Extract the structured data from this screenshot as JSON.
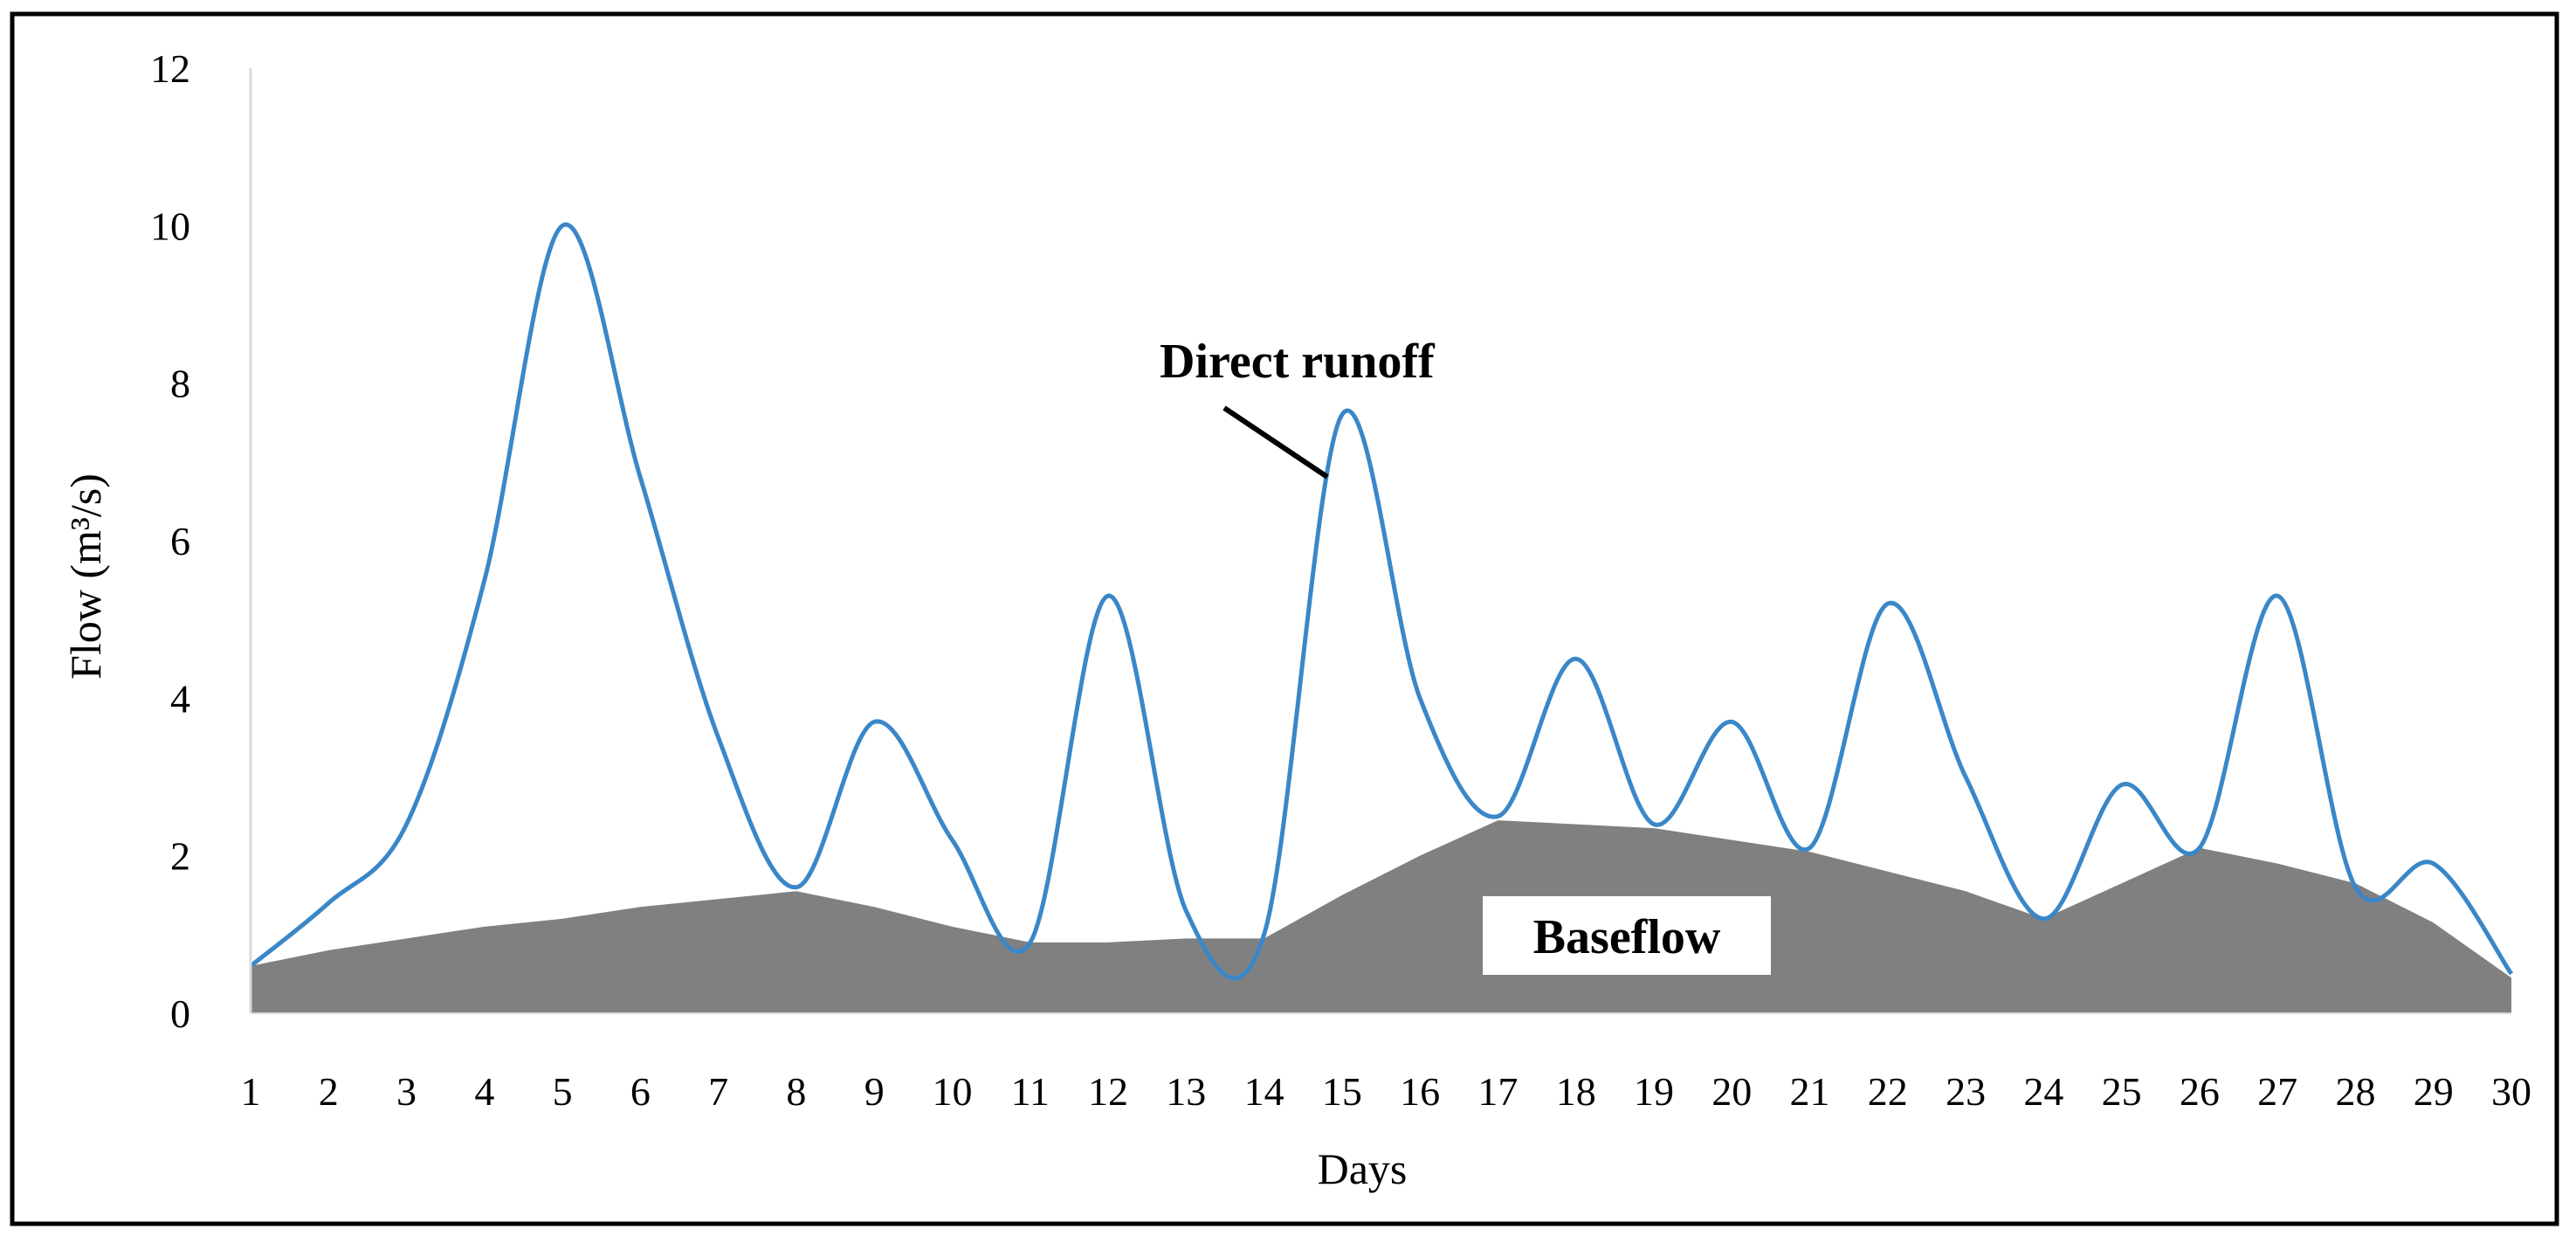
{
  "chart_data": {
    "type": "area",
    "xlabel": "Days",
    "ylabel": "Flow (m³/s)",
    "ylim": [
      0,
      12
    ],
    "yticks": [
      "0",
      "2",
      "4",
      "6",
      "8",
      "10",
      "12"
    ],
    "x": [
      1,
      2,
      3,
      4,
      5,
      6,
      7,
      8,
      9,
      10,
      11,
      12,
      13,
      14,
      15,
      16,
      17,
      18,
      19,
      20,
      21,
      22,
      23,
      24,
      25,
      26,
      27,
      28,
      29,
      30
    ],
    "series": [
      {
        "key": "direct",
        "kind": "line",
        "color": "#3a87c8",
        "values": [
          0.6,
          1.4,
          2.4,
          5.5,
          10.0,
          6.8,
          3.5,
          1.6,
          3.7,
          2.2,
          0.9,
          5.3,
          1.3,
          1.0,
          7.6,
          4.0,
          2.5,
          4.5,
          2.4,
          3.7,
          2.1,
          5.2,
          3.0,
          1.2,
          2.9,
          2.1,
          5.3,
          1.6,
          1.9,
          0.5
        ]
      },
      {
        "key": "baseflow",
        "kind": "area",
        "color": "#808080",
        "values": [
          0.6,
          0.8,
          0.95,
          1.1,
          1.2,
          1.35,
          1.45,
          1.55,
          1.35,
          1.1,
          0.9,
          0.9,
          0.95,
          0.95,
          1.5,
          2.0,
          2.45,
          2.4,
          2.35,
          2.2,
          2.05,
          1.8,
          1.55,
          1.2,
          1.65,
          2.1,
          1.9,
          1.65,
          1.15,
          0.45
        ]
      }
    ],
    "annotations": [
      {
        "text": "Direct runoff",
        "series": "direct"
      },
      {
        "text": "Baseflow",
        "series": "baseflow"
      }
    ],
    "grid": false,
    "legend": "none"
  }
}
